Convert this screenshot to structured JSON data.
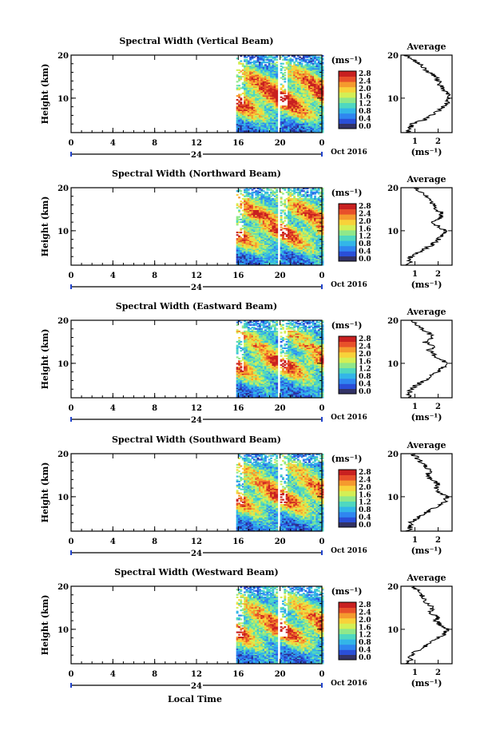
{
  "figure": {
    "x_axis_label": "Local Time",
    "date_label": "Oct 2016",
    "day_label": "24",
    "x_ticks": [
      "0",
      "4",
      "8",
      "12",
      "16",
      "20",
      "0"
    ],
    "height_label": "Height (km)",
    "height_ticks": [
      "20",
      "10"
    ],
    "unit_label": "(ms⁻¹)",
    "average_title": "Average",
    "colorbar_ticks": [
      "2.8",
      "2.4",
      "2.0",
      "1.6",
      "1.2",
      "0.8",
      "0.4",
      "0.0"
    ],
    "colormap": [
      "#2c2f8f",
      "#2a4fd8",
      "#2f86f0",
      "#33b6e8",
      "#4fd8c0",
      "#8fe88a",
      "#d4ef55",
      "#f8d23a",
      "#f59a2e",
      "#e8502a",
      "#c82020"
    ]
  },
  "chart_data": [
    {
      "type": "heatmap",
      "title": "Spectral Width (Vertical Beam)",
      "xlabel": "Local Time",
      "ylabel": "Height (km)",
      "xlim": [
        0,
        24
      ],
      "ylim": [
        2,
        20
      ],
      "clim": [
        0.0,
        3.0
      ],
      "data_window": [
        [
          15.8,
          19.6
        ],
        [
          20.0,
          24.0
        ]
      ],
      "profile": {
        "xlabel": "(ms⁻¹)",
        "xlim": [
          0.4,
          2.6
        ],
        "xticks": [
          "1",
          "2"
        ],
        "heights": [
          2,
          3,
          4,
          5,
          6,
          7,
          8,
          9,
          10,
          11,
          12,
          13,
          14,
          15,
          16,
          17,
          18,
          19,
          20
        ],
        "values": [
          0.7,
          0.8,
          0.9,
          1.4,
          1.7,
          2.0,
          2.2,
          2.4,
          2.5,
          2.4,
          2.2,
          2.1,
          2.0,
          1.9,
          1.6,
          1.4,
          1.2,
          0.9,
          0.6
        ]
      }
    },
    {
      "type": "heatmap",
      "title": "Spectral Width (Northward Beam)",
      "xlabel": "Local Time",
      "ylabel": "Height (km)",
      "xlim": [
        0,
        24
      ],
      "ylim": [
        2,
        20
      ],
      "clim": [
        0.0,
        3.0
      ],
      "data_window": [
        [
          15.8,
          19.6
        ],
        [
          20.0,
          24.0
        ]
      ],
      "profile": {
        "xlabel": "(ms⁻¹)",
        "xlim": [
          0.4,
          2.6
        ],
        "xticks": [
          "1",
          "2"
        ],
        "heights": [
          2,
          3,
          4,
          5,
          6,
          7,
          8,
          9,
          10,
          11,
          12,
          13,
          14,
          15,
          16,
          17,
          18,
          19,
          20
        ],
        "values": [
          0.7,
          0.8,
          0.8,
          1.2,
          1.5,
          1.8,
          2.0,
          2.2,
          2.3,
          2.0,
          1.8,
          2.1,
          2.2,
          1.9,
          1.8,
          1.7,
          1.5,
          1.2,
          1.0
        ]
      }
    },
    {
      "type": "heatmap",
      "title": "Spectral Width (Eastward Beam)",
      "xlabel": "Local Time",
      "ylabel": "Height (km)",
      "xlim": [
        0,
        24
      ],
      "ylim": [
        2,
        20
      ],
      "clim": [
        0.0,
        3.0
      ],
      "data_window": [
        [
          15.8,
          19.6
        ],
        [
          20.0,
          24.0
        ]
      ],
      "profile": {
        "xlabel": "(ms⁻¹)",
        "xlim": [
          0.4,
          2.6
        ],
        "xticks": [
          "1",
          "2"
        ],
        "heights": [
          2,
          3,
          4,
          5,
          6,
          7,
          8,
          9,
          10,
          11,
          12,
          13,
          14,
          15,
          16,
          17,
          18,
          19,
          20
        ],
        "values": [
          0.7,
          0.8,
          0.8,
          1.1,
          1.4,
          1.7,
          2.0,
          2.2,
          2.4,
          2.1,
          1.8,
          1.6,
          1.9,
          1.4,
          1.8,
          1.6,
          1.3,
          1.0,
          0.9
        ]
      }
    },
    {
      "type": "heatmap",
      "title": "Spectral Width (Southward Beam)",
      "xlabel": "Local Time",
      "ylabel": "Height (km)",
      "xlim": [
        0,
        24
      ],
      "ylim": [
        2,
        20
      ],
      "clim": [
        0.0,
        3.0
      ],
      "data_window": [
        [
          15.8,
          19.6
        ],
        [
          20.0,
          24.0
        ]
      ],
      "profile": {
        "xlabel": "(ms⁻¹)",
        "xlim": [
          0.4,
          2.6
        ],
        "xticks": [
          "1",
          "2"
        ],
        "heights": [
          2,
          3,
          4,
          5,
          6,
          7,
          8,
          9,
          10,
          11,
          12,
          13,
          14,
          15,
          16,
          17,
          18,
          19,
          20
        ],
        "values": [
          0.7,
          0.8,
          0.8,
          1.1,
          1.4,
          1.7,
          2.0,
          2.3,
          2.4,
          2.1,
          1.9,
          2.0,
          1.7,
          1.5,
          1.7,
          1.5,
          1.3,
          1.1,
          0.9
        ]
      }
    },
    {
      "type": "heatmap",
      "title": "Spectral Width (Westward Beam)",
      "xlabel": "Local Time",
      "ylabel": "Height (km)",
      "xlim": [
        0,
        24
      ],
      "ylim": [
        2,
        20
      ],
      "clim": [
        0.0,
        3.0
      ],
      "data_window": [
        [
          15.8,
          19.6
        ],
        [
          20.0,
          24.0
        ]
      ],
      "profile": {
        "xlabel": "(ms⁻¹)",
        "xlim": [
          0.4,
          2.6
        ],
        "xticks": [
          "1",
          "2"
        ],
        "heights": [
          2,
          3,
          4,
          5,
          6,
          7,
          8,
          9,
          10,
          11,
          12,
          13,
          14,
          15,
          16,
          17,
          18,
          19,
          20
        ],
        "values": [
          0.7,
          0.8,
          0.8,
          1.1,
          1.4,
          1.7,
          2.0,
          2.3,
          2.4,
          2.1,
          1.9,
          2.0,
          1.6,
          1.8,
          1.5,
          1.4,
          1.3,
          1.1,
          0.9
        ]
      }
    }
  ]
}
